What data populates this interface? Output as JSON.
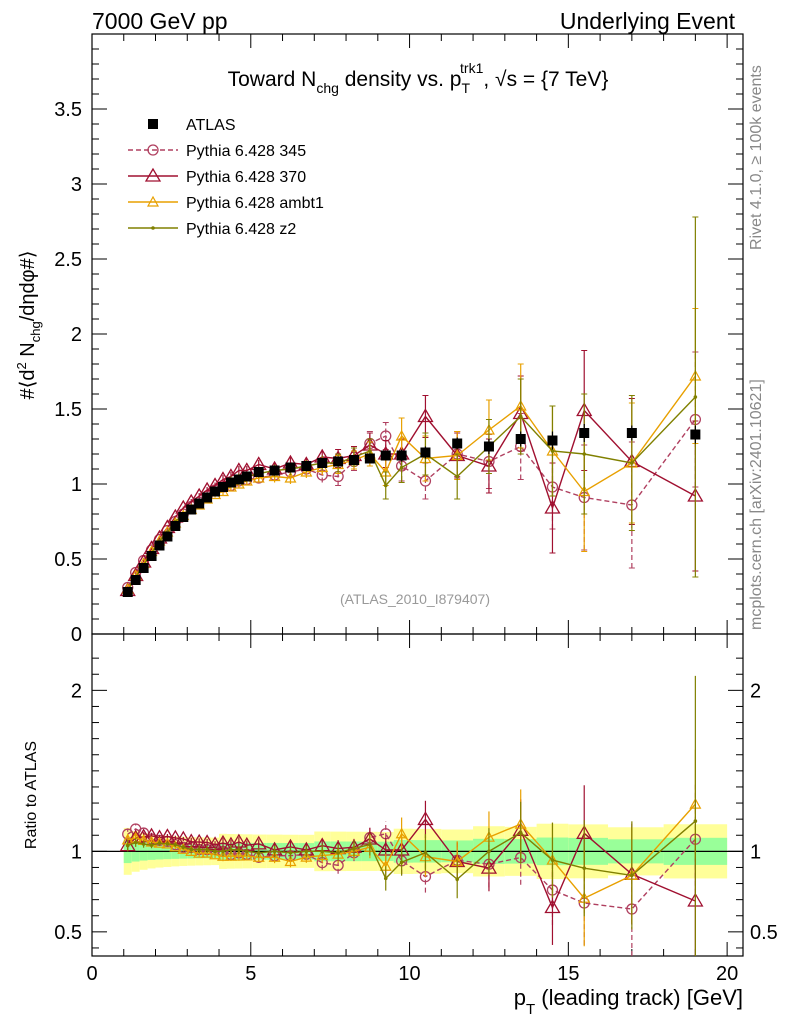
{
  "header": {
    "left": "7000 GeV pp",
    "right": "Underlying Event"
  },
  "side_texts": {
    "rivet": "Rivet 4.1.0, ≥ 100k events",
    "mcplots": "mcplots.cern.ch [arXiv:2401.10621]"
  },
  "watermark": "(ATLAS_2010_I879407)",
  "chart_data": {
    "type": "line",
    "title": "Toward N_chg density vs. p_T^trk1, √s = {7 TeV}",
    "title_parts": {
      "a": "Toward N",
      "a_sub": "chg",
      "b": " density vs. p",
      "b_sub": "T",
      "b_sup": "trk1",
      "c": ", √s = {7 TeV}"
    },
    "xlabel": "p_T (leading track) [GeV]",
    "xlabel_parts": {
      "a": "p",
      "a_sub": "T",
      "b": " (leading track) [GeV]"
    },
    "ylabel": "#⟨d² N_chg/dηdφ#⟩",
    "ylabel_parts": {
      "a": "#⟨d",
      "a_sup": "2",
      "b": " N",
      "b_sub": "chg",
      "c": "/dηdφ#⟩"
    },
    "ratio_ylabel": "Ratio to ATLAS",
    "xlim": [
      0,
      20.5
    ],
    "ylim": [
      0,
      4.0
    ],
    "ratio_ylim": [
      0.35,
      2.35
    ],
    "xticks": [
      0,
      5,
      10,
      15,
      20
    ],
    "xtick_labels": [
      "0",
      "5",
      "10",
      "15",
      "20"
    ],
    "yticks": [
      0,
      0.5,
      1,
      1.5,
      2,
      2.5,
      3,
      3.5
    ],
    "ytick_labels": [
      "0",
      "0.5",
      "1",
      "1.5",
      "2",
      "2.5",
      "3",
      "3.5"
    ],
    "ratio_yticks": [
      0.5,
      1,
      2
    ],
    "ratio_ytick_labels": [
      "0.5",
      "1",
      "2"
    ],
    "x": [
      1.125,
      1.375,
      1.625,
      1.875,
      2.125,
      2.375,
      2.625,
      2.875,
      3.125,
      3.375,
      3.625,
      3.875,
      4.125,
      4.375,
      4.625,
      4.875,
      5.25,
      5.75,
      6.25,
      6.75,
      7.25,
      7.75,
      8.25,
      8.75,
      9.25,
      9.75,
      10.5,
      11.5,
      12.5,
      13.5,
      14.5,
      15.5,
      17.0,
      19.0
    ],
    "data": {
      "name": "ATLAS",
      "values": [
        0.28,
        0.36,
        0.44,
        0.52,
        0.59,
        0.65,
        0.72,
        0.78,
        0.83,
        0.87,
        0.91,
        0.95,
        0.98,
        1.01,
        1.03,
        1.05,
        1.08,
        1.09,
        1.11,
        1.12,
        1.14,
        1.15,
        1.16,
        1.17,
        1.19,
        1.19,
        1.21,
        1.27,
        1.25,
        1.3,
        1.29,
        1.34,
        1.34,
        1.33
      ],
      "errors": [
        0.01,
        0.01,
        0.01,
        0.01,
        0.01,
        0.01,
        0.01,
        0.01,
        0.01,
        0.01,
        0.01,
        0.01,
        0.02,
        0.02,
        0.02,
        0.02,
        0.02,
        0.02,
        0.02,
        0.02,
        0.03,
        0.03,
        0.03,
        0.03,
        0.03,
        0.04,
        0.04,
        0.04,
        0.05,
        0.05,
        0.06,
        0.06,
        0.05,
        0.06
      ],
      "color": "#000000"
    },
    "series": [
      {
        "name": "Pythia 6.428 345",
        "color": "#b04060",
        "marker": "circle",
        "dashed": true,
        "values": [
          0.31,
          0.41,
          0.49,
          0.56,
          0.63,
          0.69,
          0.75,
          0.8,
          0.85,
          0.88,
          0.92,
          0.96,
          0.98,
          0.99,
          1.02,
          1.03,
          1.04,
          1.06,
          1.08,
          1.1,
          1.06,
          1.05,
          1.15,
          1.27,
          1.32,
          1.12,
          1.02,
          1.2,
          1.15,
          1.25,
          0.98,
          0.91,
          0.86,
          1.43
        ],
        "errors": [
          0.01,
          0.01,
          0.01,
          0.01,
          0.01,
          0.01,
          0.01,
          0.01,
          0.02,
          0.02,
          0.02,
          0.02,
          0.03,
          0.03,
          0.03,
          0.03,
          0.03,
          0.04,
          0.04,
          0.04,
          0.05,
          0.06,
          0.06,
          0.08,
          0.09,
          0.1,
          0.12,
          0.15,
          0.18,
          0.22,
          0.28,
          0.35,
          0.42,
          0.45
        ]
      },
      {
        "name": "Pythia 6.428 370",
        "color": "#a01030",
        "marker": "triangle",
        "dashed": false,
        "values": [
          0.29,
          0.39,
          0.48,
          0.57,
          0.64,
          0.71,
          0.78,
          0.84,
          0.88,
          0.92,
          0.96,
          0.99,
          1.03,
          1.05,
          1.09,
          1.09,
          1.13,
          1.1,
          1.14,
          1.13,
          1.18,
          1.17,
          1.19,
          1.26,
          1.2,
          1.2,
          1.45,
          1.19,
          1.12,
          1.47,
          0.84,
          1.49,
          1.15,
          0.92
        ],
        "errors": [
          0.01,
          0.01,
          0.01,
          0.01,
          0.01,
          0.01,
          0.01,
          0.01,
          0.02,
          0.02,
          0.02,
          0.02,
          0.03,
          0.03,
          0.03,
          0.03,
          0.03,
          0.04,
          0.04,
          0.04,
          0.05,
          0.06,
          0.06,
          0.08,
          0.09,
          0.1,
          0.14,
          0.15,
          0.18,
          0.25,
          0.3,
          0.4,
          0.42,
          0.5
        ]
      },
      {
        "name": "Pythia 6.428 ambt1",
        "color": "#e8a000",
        "marker": "triangle-small",
        "dashed": false,
        "values": [
          0.3,
          0.39,
          0.47,
          0.55,
          0.62,
          0.68,
          0.74,
          0.79,
          0.83,
          0.86,
          0.9,
          0.93,
          0.95,
          0.98,
          1.0,
          1.02,
          1.04,
          1.05,
          1.04,
          1.08,
          1.11,
          1.13,
          1.16,
          1.2,
          1.08,
          1.32,
          1.17,
          1.19,
          1.36,
          1.52,
          1.22,
          0.95,
          1.14,
          1.72
        ],
        "errors": [
          0.01,
          0.01,
          0.01,
          0.01,
          0.01,
          0.01,
          0.01,
          0.01,
          0.02,
          0.02,
          0.02,
          0.02,
          0.03,
          0.03,
          0.03,
          0.03,
          0.03,
          0.04,
          0.04,
          0.04,
          0.05,
          0.06,
          0.06,
          0.08,
          0.09,
          0.12,
          0.15,
          0.16,
          0.2,
          0.28,
          0.3,
          0.4,
          0.4,
          0.45
        ]
      },
      {
        "name": "Pythia 6.428 z2",
        "color": "#808000",
        "marker": "dot",
        "dashed": false,
        "values": [
          0.29,
          0.38,
          0.46,
          0.54,
          0.62,
          0.68,
          0.75,
          0.8,
          0.84,
          0.88,
          0.92,
          0.95,
          0.98,
          1.02,
          1.04,
          1.05,
          1.07,
          1.09,
          1.1,
          1.12,
          1.14,
          1.14,
          1.18,
          1.22,
          0.99,
          1.11,
          1.2,
          1.05,
          1.25,
          1.45,
          1.22,
          1.2,
          1.14,
          1.58
        ],
        "errors": [
          0.01,
          0.01,
          0.01,
          0.01,
          0.01,
          0.01,
          0.01,
          0.01,
          0.02,
          0.02,
          0.02,
          0.02,
          0.03,
          0.03,
          0.03,
          0.03,
          0.03,
          0.04,
          0.04,
          0.04,
          0.05,
          0.06,
          0.06,
          0.08,
          0.09,
          0.1,
          0.14,
          0.15,
          0.18,
          0.25,
          0.3,
          0.4,
          0.45,
          1.2
        ]
      }
    ]
  }
}
